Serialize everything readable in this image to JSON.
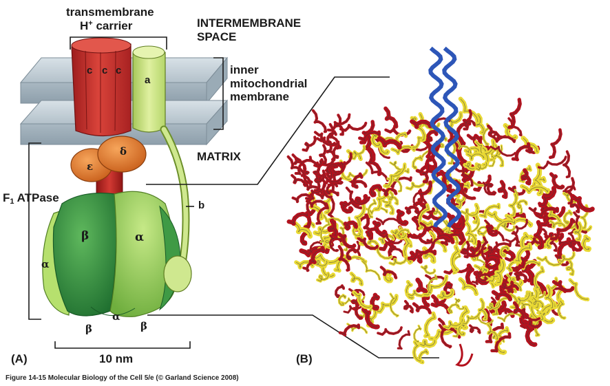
{
  "labels": {
    "transmembrane_carrier_line1": "transmembrane",
    "transmembrane_carrier_line2_prefix": "H",
    "transmembrane_carrier_line2_sup": "+",
    "transmembrane_carrier_line2_suffix": " carrier",
    "intermembrane_line1": "INTERMEMBRANE",
    "intermembrane_line2": "SPACE",
    "inner_membrane_line1": "inner",
    "inner_membrane_line2": "mitochondrial",
    "inner_membrane_line3": "membrane",
    "matrix": "MATRIX",
    "f1_prefix": "F",
    "f1_sub": "1",
    "f1_suffix": " ATPase",
    "scale": "10 nm",
    "panel_a": "(A)",
    "panel_b": "(B)"
  },
  "subunits": {
    "c1": "c",
    "c2": "c",
    "c3": "c",
    "a": "a",
    "b": "b",
    "delta": "δ",
    "epsilon": "ε",
    "beta_main": "β",
    "alpha_main": "α",
    "alpha_left": "α",
    "beta_bottom_left": "β",
    "alpha_bottom": "α",
    "beta_bottom_right": "β"
  },
  "caption": "Figure 14-15  Molecular Biology of the Cell 5/e (© Garland Science 2008)",
  "colors": {
    "membrane": "#b9c6cf",
    "c_ring": "#c8332c",
    "subunit_a": "#c9e27a",
    "delta_epsilon": "#e37a2a",
    "beta": "#3f9a45",
    "alpha": "#92cf5c",
    "helix_red": "#b4121e",
    "helix_yellow": "#e9d934",
    "helix_blue": "#2d56b8"
  }
}
